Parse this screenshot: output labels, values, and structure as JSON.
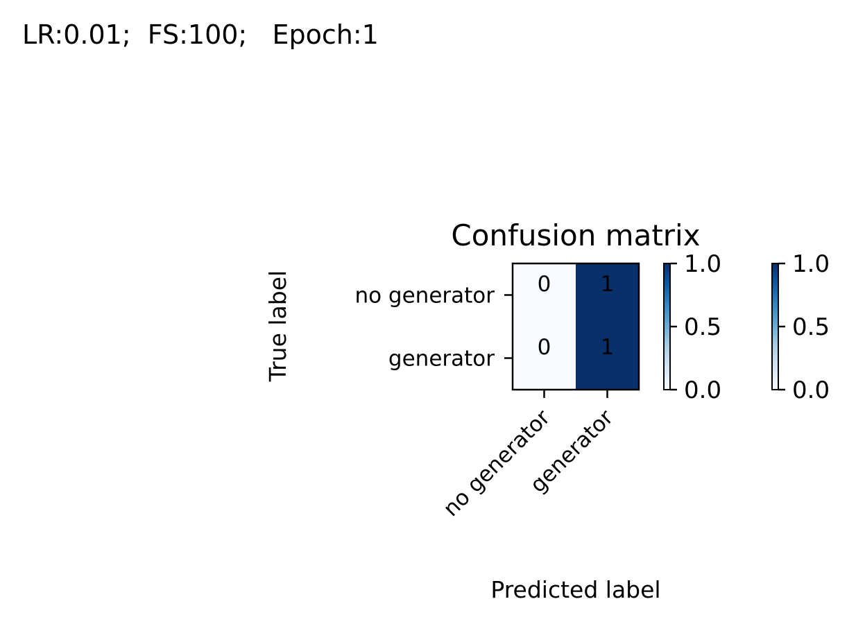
{
  "figure": {
    "suptitle": "LR:0.01;  FS:100;   Epoch:1"
  },
  "chart_data": {
    "type": "heatmap",
    "title": "Confusion matrix",
    "xlabel": "Predicted label",
    "ylabel": "True label",
    "x_categories": [
      "no generator",
      "generator"
    ],
    "y_categories": [
      "no generator",
      "generator"
    ],
    "values": [
      [
        0,
        1
      ],
      [
        0,
        1
      ]
    ],
    "colormap": "Blues",
    "colormap_low": "#f7fbff",
    "colormap_high": "#08306b",
    "value_range": [
      0,
      1
    ],
    "colorbars": [
      {
        "ticks": [
          0.0,
          0.5,
          1.0
        ],
        "tick_labels": [
          "0.0",
          "0.5",
          "1.0"
        ]
      },
      {
        "ticks": [
          0.0,
          0.5,
          1.0
        ],
        "tick_labels": [
          "0.0",
          "0.5",
          "1.0"
        ]
      }
    ]
  }
}
